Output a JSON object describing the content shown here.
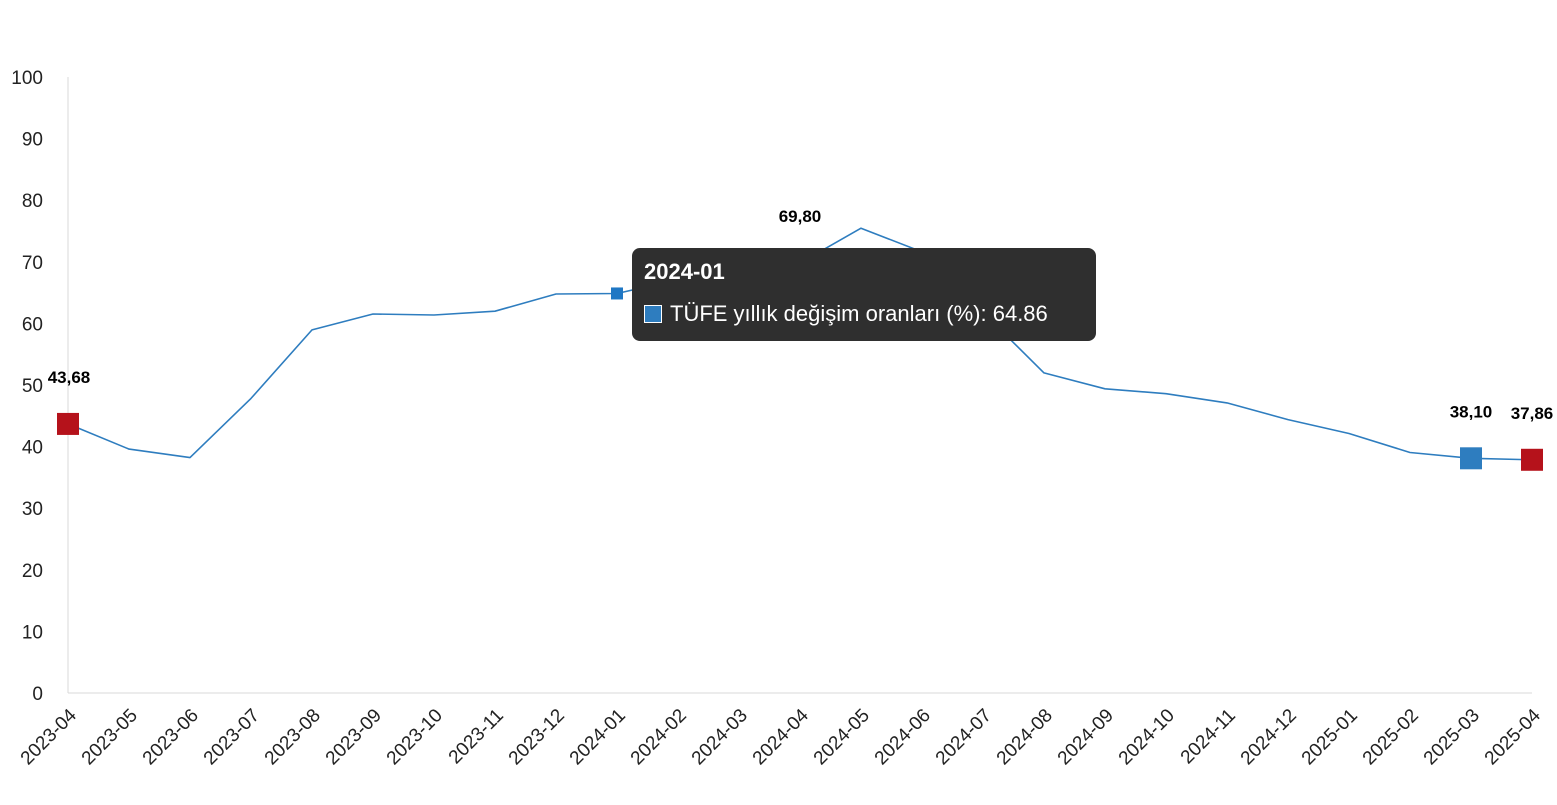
{
  "chart_data": {
    "type": "line",
    "title": "",
    "xlabel": "",
    "ylabel": "",
    "ylim": [
      0,
      100
    ],
    "yticks": [
      0,
      10,
      20,
      30,
      40,
      50,
      60,
      70,
      80,
      90,
      100
    ],
    "grid": false,
    "legend": "none",
    "categories": [
      "2023-04",
      "2023-05",
      "2023-06",
      "2023-07",
      "2023-08",
      "2023-09",
      "2023-10",
      "2023-11",
      "2023-12",
      "2024-01",
      "2024-02",
      "2024-03",
      "2024-04",
      "2024-05",
      "2024-06",
      "2024-07",
      "2024-08",
      "2024-09",
      "2024-10",
      "2024-11",
      "2024-12",
      "2025-01",
      "2025-02",
      "2025-03",
      "2025-04"
    ],
    "series": [
      {
        "name": "TÜFE yıllık değişim oranları (%)",
        "color": "#2e7dbf",
        "values": [
          43.68,
          39.59,
          38.21,
          47.83,
          58.94,
          61.53,
          61.36,
          61.98,
          64.77,
          64.86,
          67.07,
          68.5,
          69.8,
          75.45,
          71.6,
          61.78,
          51.97,
          49.38,
          48.58,
          47.09,
          44.38,
          42.12,
          39.05,
          38.1,
          37.86
        ]
      }
    ],
    "highlighted_points": [
      {
        "category": "2023-04",
        "label": "43,68",
        "color": "#b5121b"
      },
      {
        "category": "2024-04",
        "label": "69,80",
        "color": "#2b0507"
      },
      {
        "category": "2025-03",
        "label": "38,10",
        "color": "#2e7dbf"
      },
      {
        "category": "2025-04",
        "label": "37,86",
        "color": "#b5121b"
      }
    ],
    "active_point": {
      "category": "2024-01",
      "color": "#1f77c4"
    },
    "tooltip": {
      "title": "2024-01",
      "series_name": "TÜFE yıllık değişim oranları (%)",
      "value": "64.86",
      "text": "TÜFE yıllık değişim oranları (%): 64.86",
      "swatch_color": "#2e7dbf"
    }
  }
}
